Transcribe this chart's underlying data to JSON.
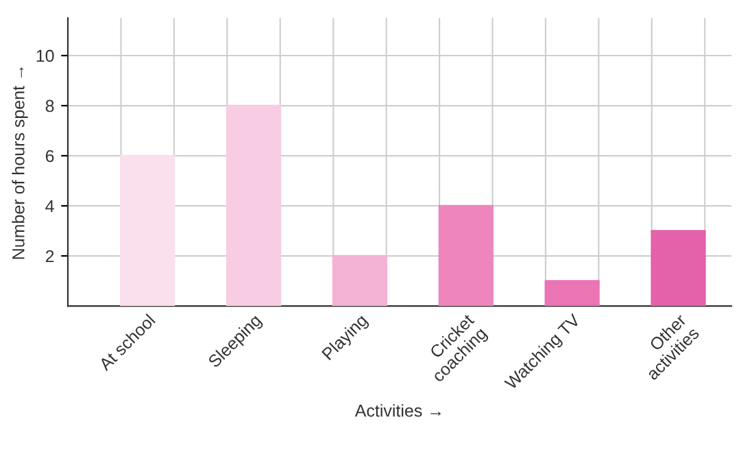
{
  "chart_data": {
    "type": "bar",
    "xlabel": "Activities →",
    "ylabel": "Number of hours spent →",
    "categories": [
      "At school",
      "Sleeping",
      "Playing",
      "Cricket\ncoaching",
      "Watching TV",
      "Other\nactivities"
    ],
    "values": [
      6,
      8,
      2,
      4,
      1,
      3
    ],
    "colors": [
      "#fae0ec",
      "#f8cce2",
      "#f4b2d5",
      "#ee86bd",
      "#ea74b4",
      "#e462aa"
    ],
    "ylim": [
      0,
      11.5
    ],
    "yticks": [
      2,
      4,
      6,
      8,
      10
    ],
    "grid": true
  }
}
